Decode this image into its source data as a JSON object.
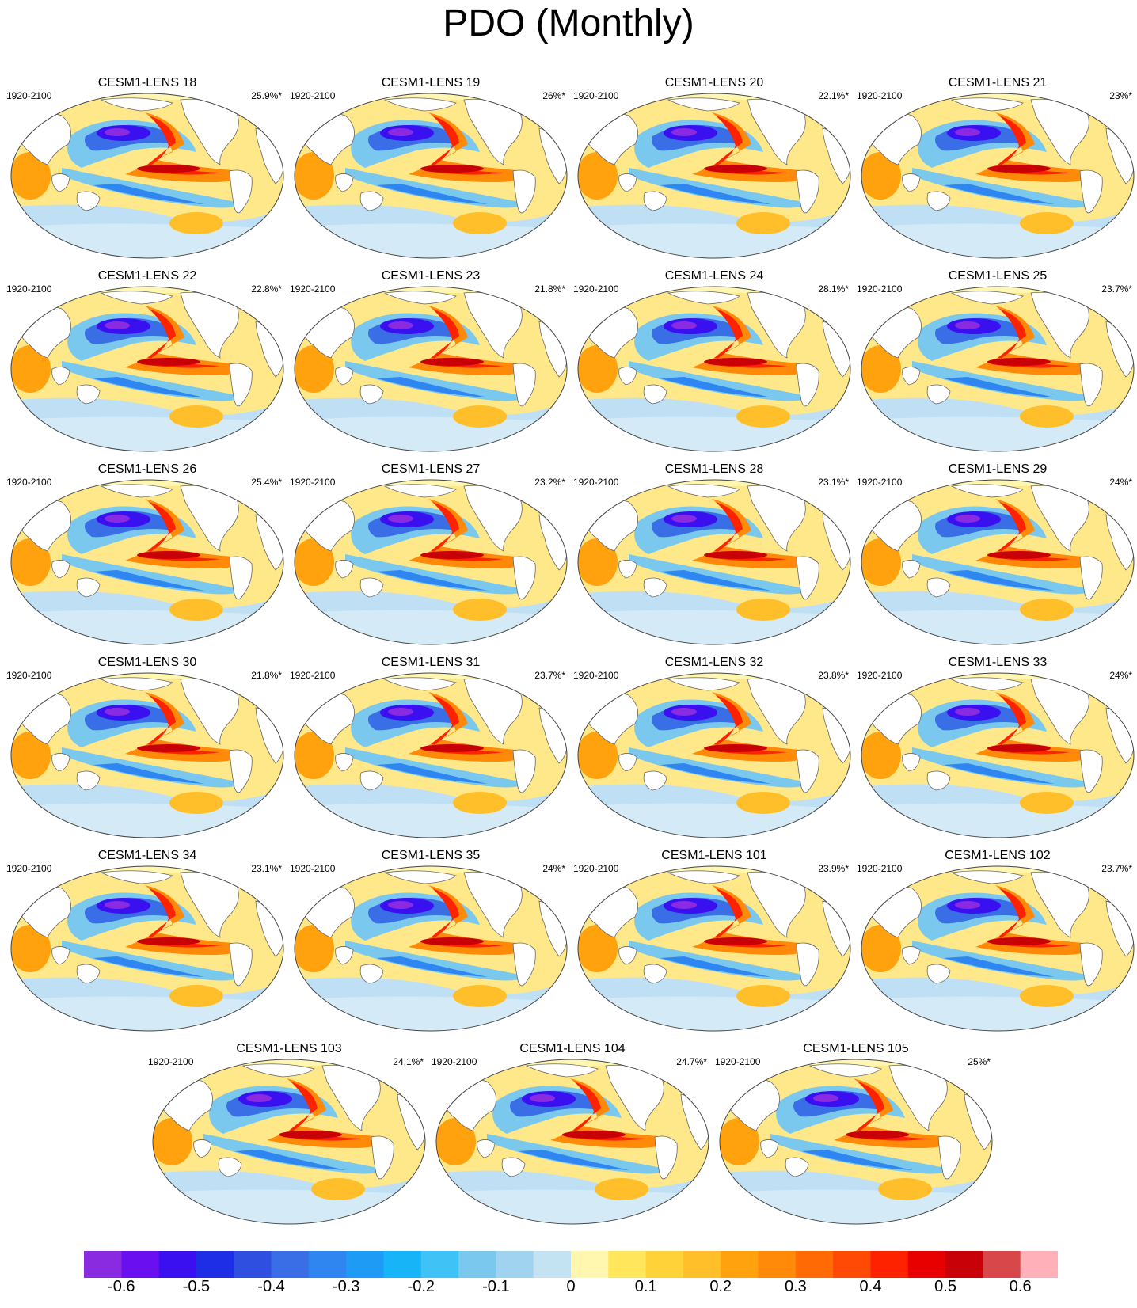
{
  "title": "PDO (Monthly)",
  "period": "1920-2100",
  "panels": [
    {
      "name": "CESM1-LENS 18",
      "pct": "25.9%*"
    },
    {
      "name": "CESM1-LENS 19",
      "pct": "26%*"
    },
    {
      "name": "CESM1-LENS 20",
      "pct": "22.1%*"
    },
    {
      "name": "CESM1-LENS 21",
      "pct": "23%*"
    },
    {
      "name": "CESM1-LENS 22",
      "pct": "22.8%*"
    },
    {
      "name": "CESM1-LENS 23",
      "pct": "21.8%*"
    },
    {
      "name": "CESM1-LENS 24",
      "pct": "28.1%*"
    },
    {
      "name": "CESM1-LENS 25",
      "pct": "23.7%*"
    },
    {
      "name": "CESM1-LENS 26",
      "pct": "25.4%*"
    },
    {
      "name": "CESM1-LENS 27",
      "pct": "23.2%*"
    },
    {
      "name": "CESM1-LENS 28",
      "pct": "23.1%*"
    },
    {
      "name": "CESM1-LENS 29",
      "pct": "24%*"
    },
    {
      "name": "CESM1-LENS 30",
      "pct": "21.8%*"
    },
    {
      "name": "CESM1-LENS 31",
      "pct": "23.7%*"
    },
    {
      "name": "CESM1-LENS 32",
      "pct": "23.8%*"
    },
    {
      "name": "CESM1-LENS 33",
      "pct": "24%*"
    },
    {
      "name": "CESM1-LENS 34",
      "pct": "23.1%*"
    },
    {
      "name": "CESM1-LENS 35",
      "pct": "24%*"
    },
    {
      "name": "CESM1-LENS 101",
      "pct": "23.9%*"
    },
    {
      "name": "CESM1-LENS 102",
      "pct": "23.7%*"
    },
    {
      "name": "CESM1-LENS 103",
      "pct": "24.1%*"
    },
    {
      "name": "CESM1-LENS 104",
      "pct": "24.7%*"
    },
    {
      "name": "CESM1-LENS 105",
      "pct": "25%*"
    }
  ],
  "colorbar": {
    "colors": [
      "#8a2be2",
      "#6a10f0",
      "#3a10f0",
      "#1e2ee6",
      "#2f4fe0",
      "#3a6ee6",
      "#2f86f0",
      "#1e9cf5",
      "#17b4f7",
      "#3fc2f5",
      "#7ac8ee",
      "#9fd3f0",
      "#c3e3f3",
      "#fff6b0",
      "#ffe65a",
      "#ffd23a",
      "#ffbf2a",
      "#ffa20e",
      "#ff8a0a",
      "#ff6a05",
      "#ff4a05",
      "#ff2200",
      "#e80000",
      "#c80008",
      "#d8484a",
      "#ffb0b8"
    ],
    "labels": [
      "-0.6",
      "-0.5",
      "-0.4",
      "-0.3",
      "-0.2",
      "-0.1",
      "0",
      "0.1",
      "0.2",
      "0.3",
      "0.4",
      "0.5",
      "0.6"
    ]
  }
}
